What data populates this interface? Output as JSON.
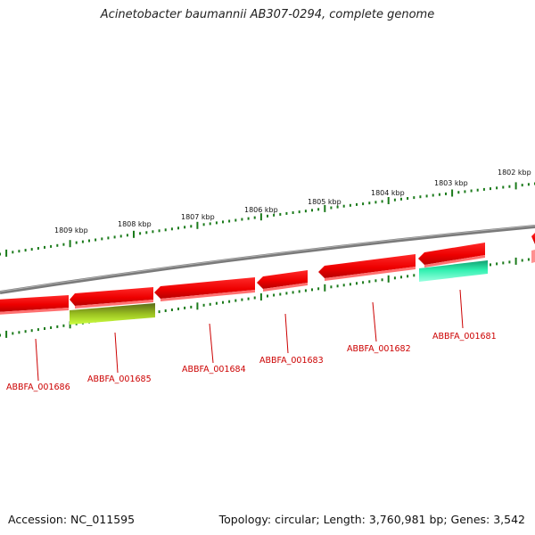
{
  "title": "Acinetobacter baumannii AB307-0294, complete genome",
  "colors": {
    "backbone": "#808080",
    "forward_gene": "#ff0000",
    "reverse_gene": "#ff0000",
    "rna_gene_teal": "#2de0a0",
    "rna_gene_olive": "#7a9a20",
    "tick": "#1a7a1a",
    "gene_label": "#cc0000"
  },
  "scale_labels": [
    "1809 kbp",
    "1808 kbp",
    "1807 kbp",
    "1806 kbp",
    "1805 kbp",
    "1804 kbp",
    "1803 kbp",
    "1802 kbp"
  ],
  "gene_labels": [
    "ABBFA_001686",
    "ABBFA_001685",
    "ABBFA_001684",
    "ABBFA_001683",
    "ABBFA_001682",
    "ABBFA_001681"
  ],
  "footer": {
    "accession": "Accession: NC_011595",
    "summary": "Topology: circular; Length: 3,760,981 bp; Genes: 3,542"
  }
}
